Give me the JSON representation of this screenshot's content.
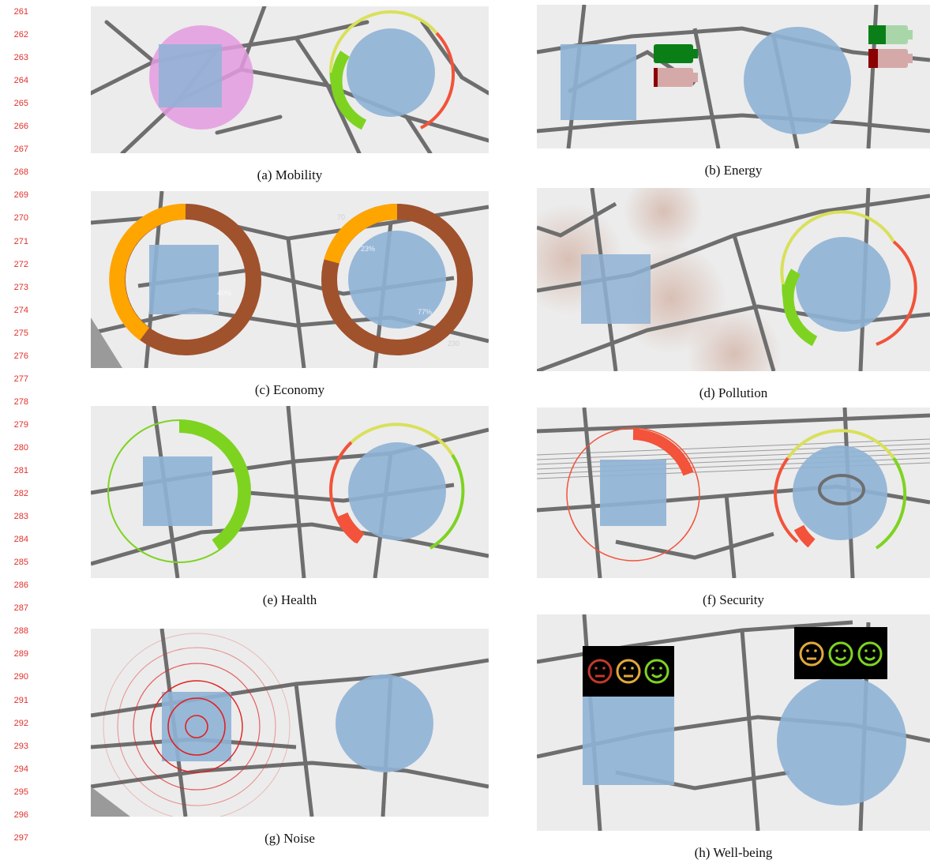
{
  "line_numbers": [
    "261",
    "262",
    "263",
    "264",
    "265",
    "266",
    "267",
    "268",
    "269",
    "270",
    "271",
    "272",
    "273",
    "274",
    "275",
    "276",
    "277",
    "278",
    "279",
    "280",
    "281",
    "282",
    "283",
    "284",
    "285",
    "286",
    "287",
    "288",
    "289",
    "290",
    "291",
    "292",
    "293",
    "294",
    "295",
    "296",
    "297"
  ],
  "figures": [
    {
      "id": "a",
      "caption": "(a) Mobility"
    },
    {
      "id": "b",
      "caption": "(b) Energy"
    },
    {
      "id": "c",
      "caption": "(c) Economy"
    },
    {
      "id": "d",
      "caption": "(d) Pollution"
    },
    {
      "id": "e",
      "caption": "(e) Health"
    },
    {
      "id": "f",
      "caption": "(f) Security"
    },
    {
      "id": "g",
      "caption": "(g) Noise"
    },
    {
      "id": "h",
      "caption": "(h) Well-being"
    }
  ],
  "economy_labels": {
    "left_percent": "40%",
    "right_top_percent": "23%",
    "right_bottom_percent": "77%",
    "tick_top": "70",
    "tick_bottom": "230"
  },
  "colors": {
    "map_bg": "#ececec",
    "road": "#6e6e6e",
    "block": "#f7f7f7",
    "blue_overlay": "#8fb3d6",
    "gauge_green": "#7ed321",
    "gauge_yellow": "#d9e05a",
    "gauge_red": "#f2533a",
    "economy_orange": "#ffa500",
    "economy_brown": "#a0522d",
    "pink": "#e49be0",
    "battery_green": "#0a7f18",
    "battery_red": "#8b0000",
    "line_number": "#e0302b"
  }
}
